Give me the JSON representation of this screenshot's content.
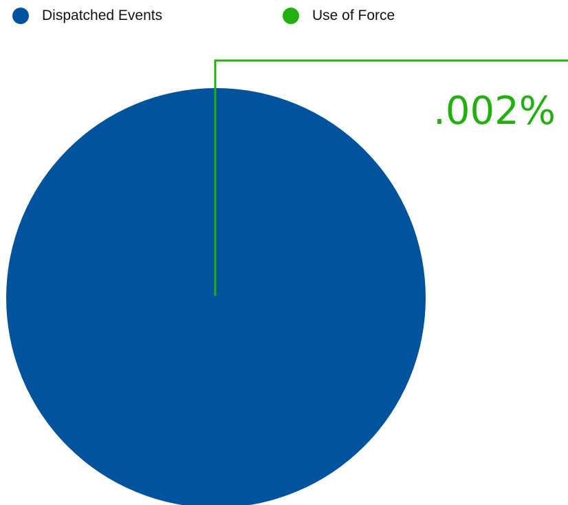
{
  "chart_data": {
    "type": "pie",
    "legend_position": "top-left",
    "series": [
      {
        "name": "Dispatched Events",
        "value": 99.998,
        "color": "#00539c"
      },
      {
        "name": "Use of Force",
        "value": 0.002,
        "color": "#22b00f"
      }
    ],
    "callout": {
      "label": ".002%",
      "series": "Use of Force",
      "color": "#22b00f"
    }
  }
}
